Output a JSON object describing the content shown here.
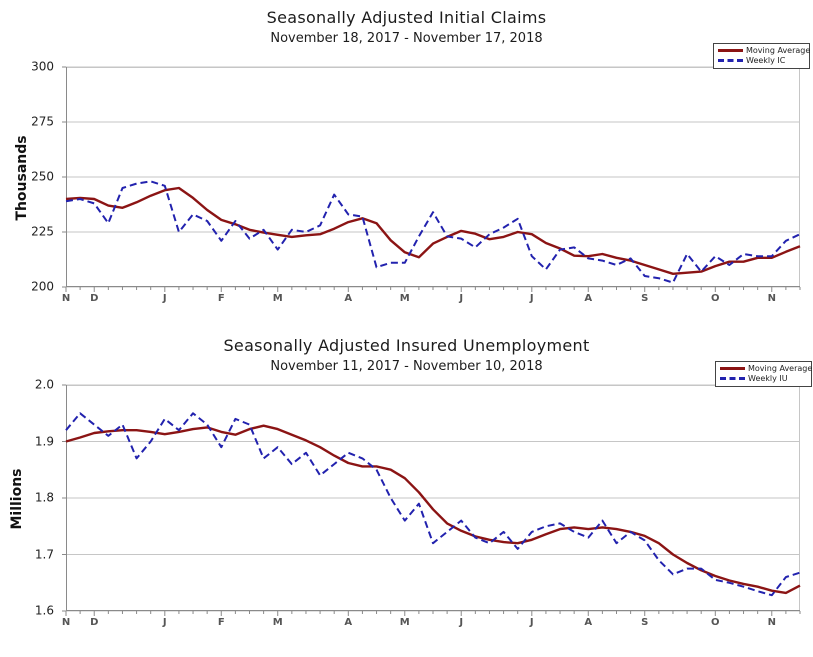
{
  "page": {
    "background": "#ffffff"
  },
  "colors": {
    "grid": "#c6c6c6",
    "axis": "#8a8a8a",
    "tick": "#8a8a8a"
  },
  "charts": [
    {
      "title": "Seasonally Adjusted Initial Claims",
      "subtitle": "November 18, 2017 - November 17, 2018",
      "y_axis_label": "Thousands",
      "legend": [
        {
          "label": "Moving Average",
          "color": "#8B1414",
          "style": "solid"
        },
        {
          "label": "Weekly IC",
          "color": "#2222AE",
          "style": "dashed"
        }
      ],
      "chart_data": {
        "type": "line",
        "title": "Seasonally Adjusted Initial Claims",
        "subtitle": "November 18, 2017 - November 17, 2018",
        "ylabel": "Thousands",
        "ylim": [
          200,
          300
        ],
        "weeks": 53,
        "grid": "horizontal-only",
        "legend_position": "top-right",
        "y_tick_values": [
          300,
          275,
          250,
          225,
          200
        ],
        "y_tick_labels": [
          "300",
          "275",
          "250",
          "225",
          "200"
        ],
        "x_tick_labels": [
          "N",
          "D",
          "J",
          "F",
          "M",
          "A",
          "M",
          "J",
          "J",
          "A",
          "S",
          "O",
          "N"
        ],
        "x_tick_week_index": [
          1,
          3,
          8,
          12,
          16,
          21,
          25,
          29,
          34,
          38,
          42,
          47,
          51
        ],
        "series": [
          {
            "name": "Moving Average",
            "color": "#8B1414",
            "style": "solid",
            "values": [
              240,
              240.5,
              240,
              237,
              236,
              238.5,
              241.5,
              244,
              245,
              240.5,
              235,
              230.5,
              228.5,
              226,
              224.75,
              223.75,
              222.75,
              223.5,
              224,
              226.5,
              229.5,
              231.25,
              229,
              221.25,
              215.75,
              213.5,
              219.75,
              222.75,
              225.5,
              224.25,
              221.75,
              222.75,
              225,
              224,
              220,
              217.5,
              214.25,
              214,
              215,
              213.25,
              212,
              210,
              208,
              206,
              206.5,
              207,
              209.5,
              211.5,
              211.5,
              213.25,
              213.25,
              216,
              218.5
            ]
          },
          {
            "name": "Weekly IC",
            "color": "#2222AE",
            "style": "dashed",
            "values": [
              239,
              240,
              238,
              229,
              245,
              247,
              248,
              246,
              225,
              233,
              230,
              221,
              230,
              222,
              226,
              217,
              226,
              225,
              228,
              242,
              233,
              232,
              209,
              211,
              211,
              223,
              234,
              223,
              222,
              218,
              224,
              227,
              231,
              214,
              208,
              217,
              218,
              213,
              212,
              210,
              213,
              205,
              204,
              202,
              215,
              207,
              214,
              210,
              215,
              214,
              214,
              221,
              224
            ]
          }
        ]
      }
    },
    {
      "title": "Seasonally Adjusted Insured Unemployment",
      "subtitle": "November 11, 2017 - November 10, 2018",
      "y_axis_label": "Millions",
      "legend": [
        {
          "label": "Moving Average",
          "color": "#8B1414",
          "style": "solid"
        },
        {
          "label": "Weekly IU",
          "color": "#2222AE",
          "style": "dashed"
        }
      ],
      "chart_data": {
        "type": "line",
        "title": "Seasonally Adjusted Insured Unemployment",
        "subtitle": "November 11, 2017 - November 10, 2018",
        "ylabel": "Millions",
        "ylim": [
          1.6,
          2.0
        ],
        "weeks": 53,
        "grid": "horizontal-only",
        "legend_position": "top-right",
        "y_tick_values": [
          2.0,
          1.9,
          1.8,
          1.7,
          1.6
        ],
        "y_tick_labels": [
          "2.0",
          "1.9",
          "1.8",
          "1.7",
          "1.6"
        ],
        "x_tick_labels": [
          "N",
          "D",
          "J",
          "F",
          "M",
          "A",
          "M",
          "J",
          "J",
          "A",
          "S",
          "O",
          "N"
        ],
        "x_tick_week_index": [
          1,
          3,
          8,
          12,
          16,
          21,
          25,
          29,
          34,
          38,
          42,
          47,
          51
        ],
        "series": [
          {
            "name": "Moving Average",
            "color": "#8B1414",
            "style": "solid",
            "values": [
              1.9,
              1.907,
              1.915,
              1.918,
              1.92,
              1.92,
              1.917,
              1.913,
              1.917,
              1.922,
              1.925,
              1.917,
              1.912,
              1.922,
              1.928,
              1.922,
              1.912,
              1.902,
              1.89,
              1.875,
              1.862,
              1.856,
              1.856,
              1.85,
              1.835,
              1.81,
              1.78,
              1.755,
              1.742,
              1.732,
              1.726,
              1.722,
              1.72,
              1.726,
              1.736,
              1.745,
              1.748,
              1.745,
              1.748,
              1.745,
              1.74,
              1.733,
              1.72,
              1.7,
              1.685,
              1.672,
              1.662,
              1.654,
              1.648,
              1.643,
              1.636,
              1.632,
              1.645
            ]
          },
          {
            "name": "Weekly IU",
            "color": "#2222AE",
            "style": "dashed",
            "values": [
              1.92,
              1.95,
              1.93,
              1.91,
              1.93,
              1.87,
              1.9,
              1.94,
              1.92,
              1.95,
              1.93,
              1.89,
              1.94,
              1.93,
              1.87,
              1.89,
              1.86,
              1.88,
              1.84,
              1.86,
              1.88,
              1.87,
              1.85,
              1.8,
              1.76,
              1.79,
              1.72,
              1.74,
              1.76,
              1.73,
              1.72,
              1.74,
              1.71,
              1.74,
              1.75,
              1.755,
              1.74,
              1.73,
              1.76,
              1.72,
              1.74,
              1.725,
              1.69,
              1.665,
              1.675,
              1.675,
              1.655,
              1.65,
              1.643,
              1.635,
              1.628,
              1.66,
              1.668
            ]
          }
        ]
      }
    }
  ]
}
